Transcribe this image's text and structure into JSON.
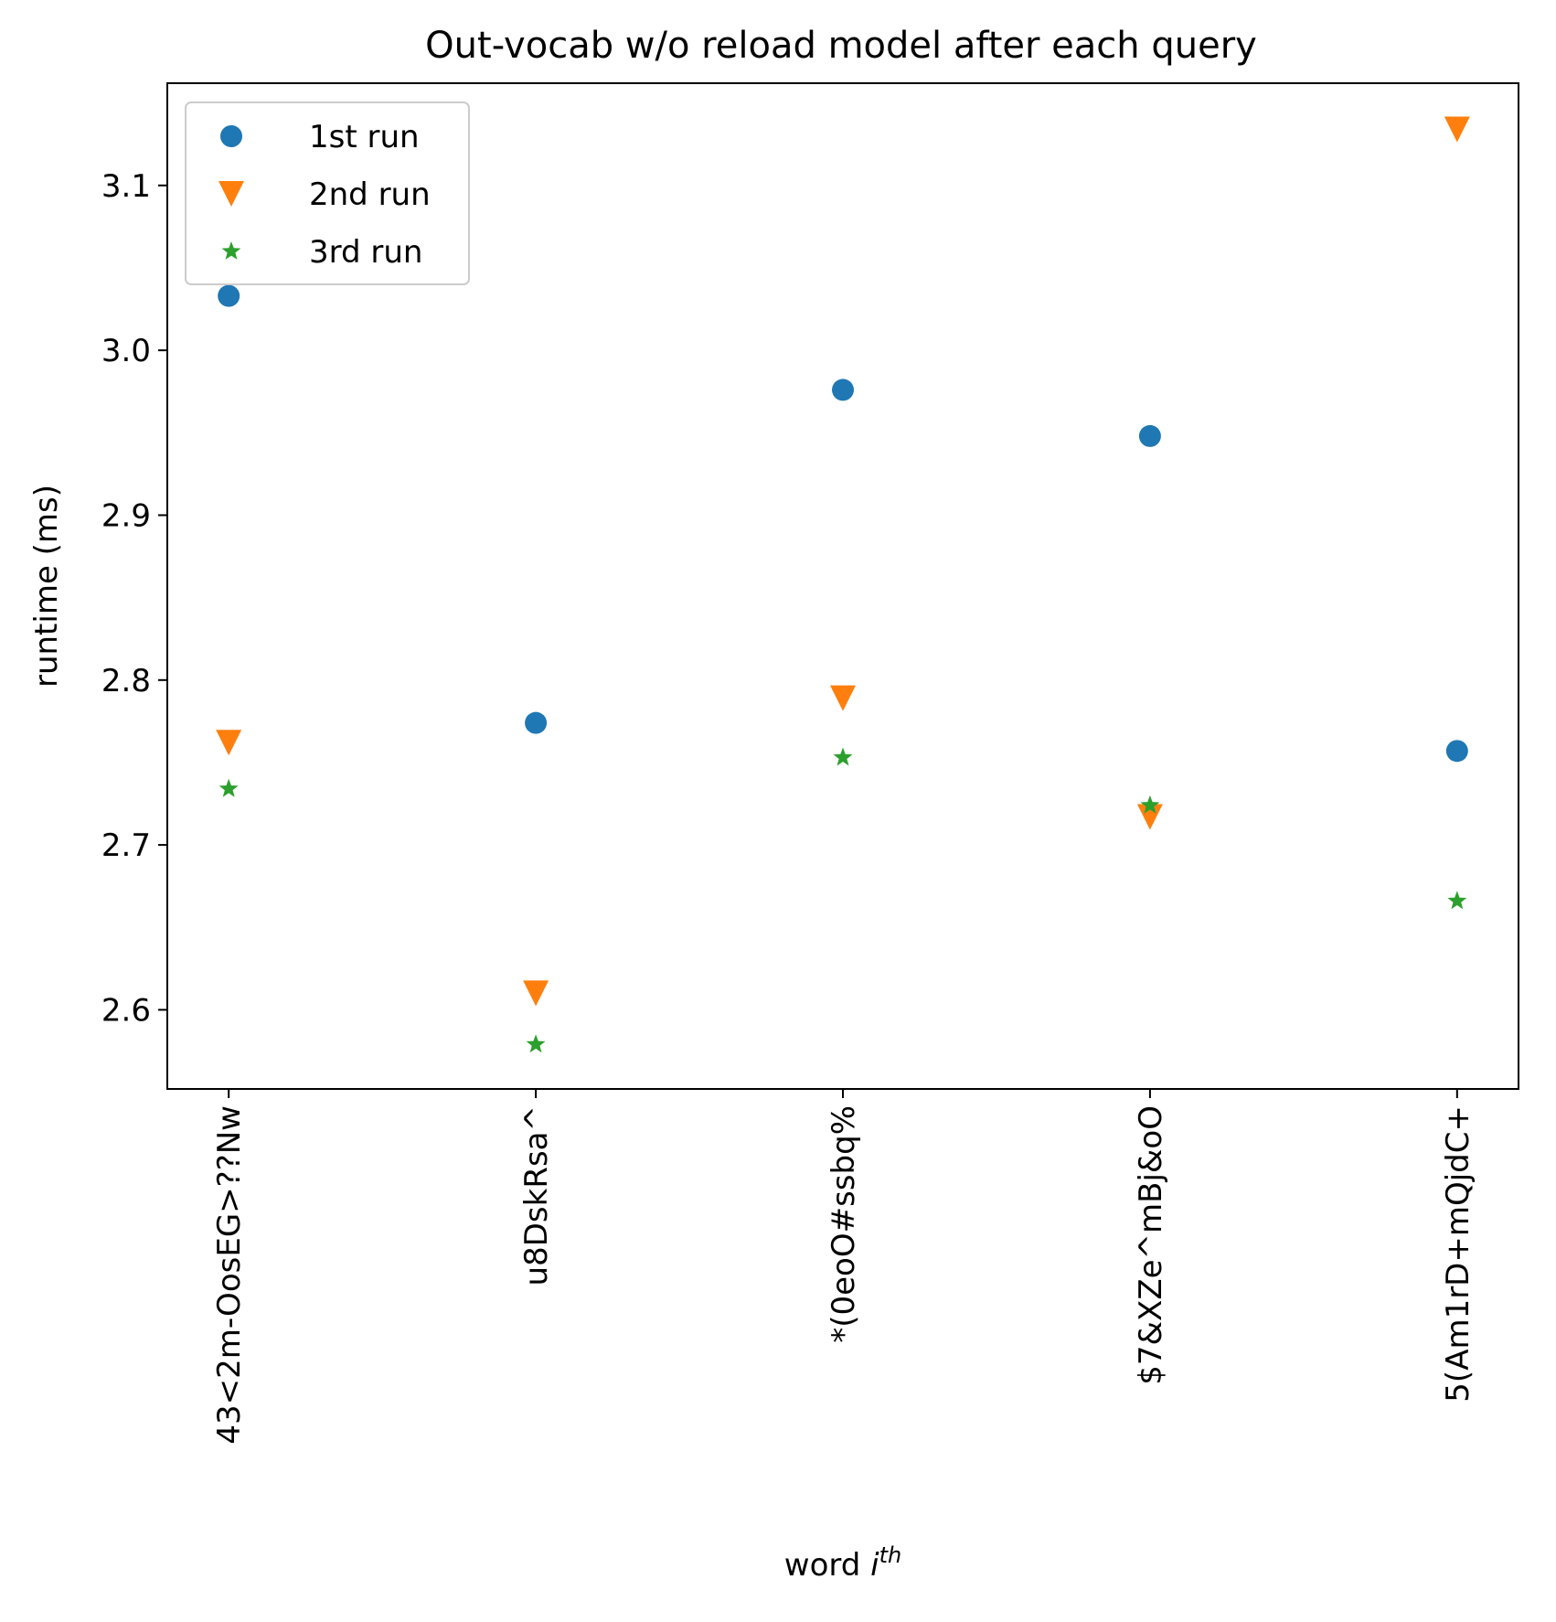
{
  "chart_data": {
    "type": "scatter",
    "title": "Out-vocab w/o reload model after each query",
    "xlabel_prefix": "word ",
    "xlabel_var": "i",
    "xlabel_sup": "th",
    "ylabel": "runtime (ms)",
    "categories": [
      "43<2m-OosEG>??Nw",
      "u8DskRsa^",
      "*(0eoO#ssbq%",
      "$7&XZe^mBj&oO",
      "5(Am1rD+mQjdC+"
    ],
    "ylim": [
      2.552,
      3.162
    ],
    "yticks": [
      2.6,
      2.7,
      2.8,
      2.9,
      3.0,
      3.1
    ],
    "ytick_labels": [
      "2.6",
      "2.7",
      "2.8",
      "2.9",
      "3.0",
      "3.1"
    ],
    "grid": false,
    "legend_position": "top-left",
    "series": [
      {
        "name": "1st run",
        "marker": "circle",
        "color": "#1f77b4",
        "values": [
          3.033,
          2.774,
          2.976,
          2.948,
          2.757
        ]
      },
      {
        "name": "2nd run",
        "marker": "triangle-down",
        "color": "#ff7f0e",
        "values": [
          2.762,
          2.61,
          2.789,
          2.717,
          3.134
        ]
      },
      {
        "name": "3rd run",
        "marker": "star",
        "color": "#2ca02c",
        "values": [
          2.734,
          2.579,
          2.753,
          2.724,
          2.666
        ]
      }
    ]
  }
}
